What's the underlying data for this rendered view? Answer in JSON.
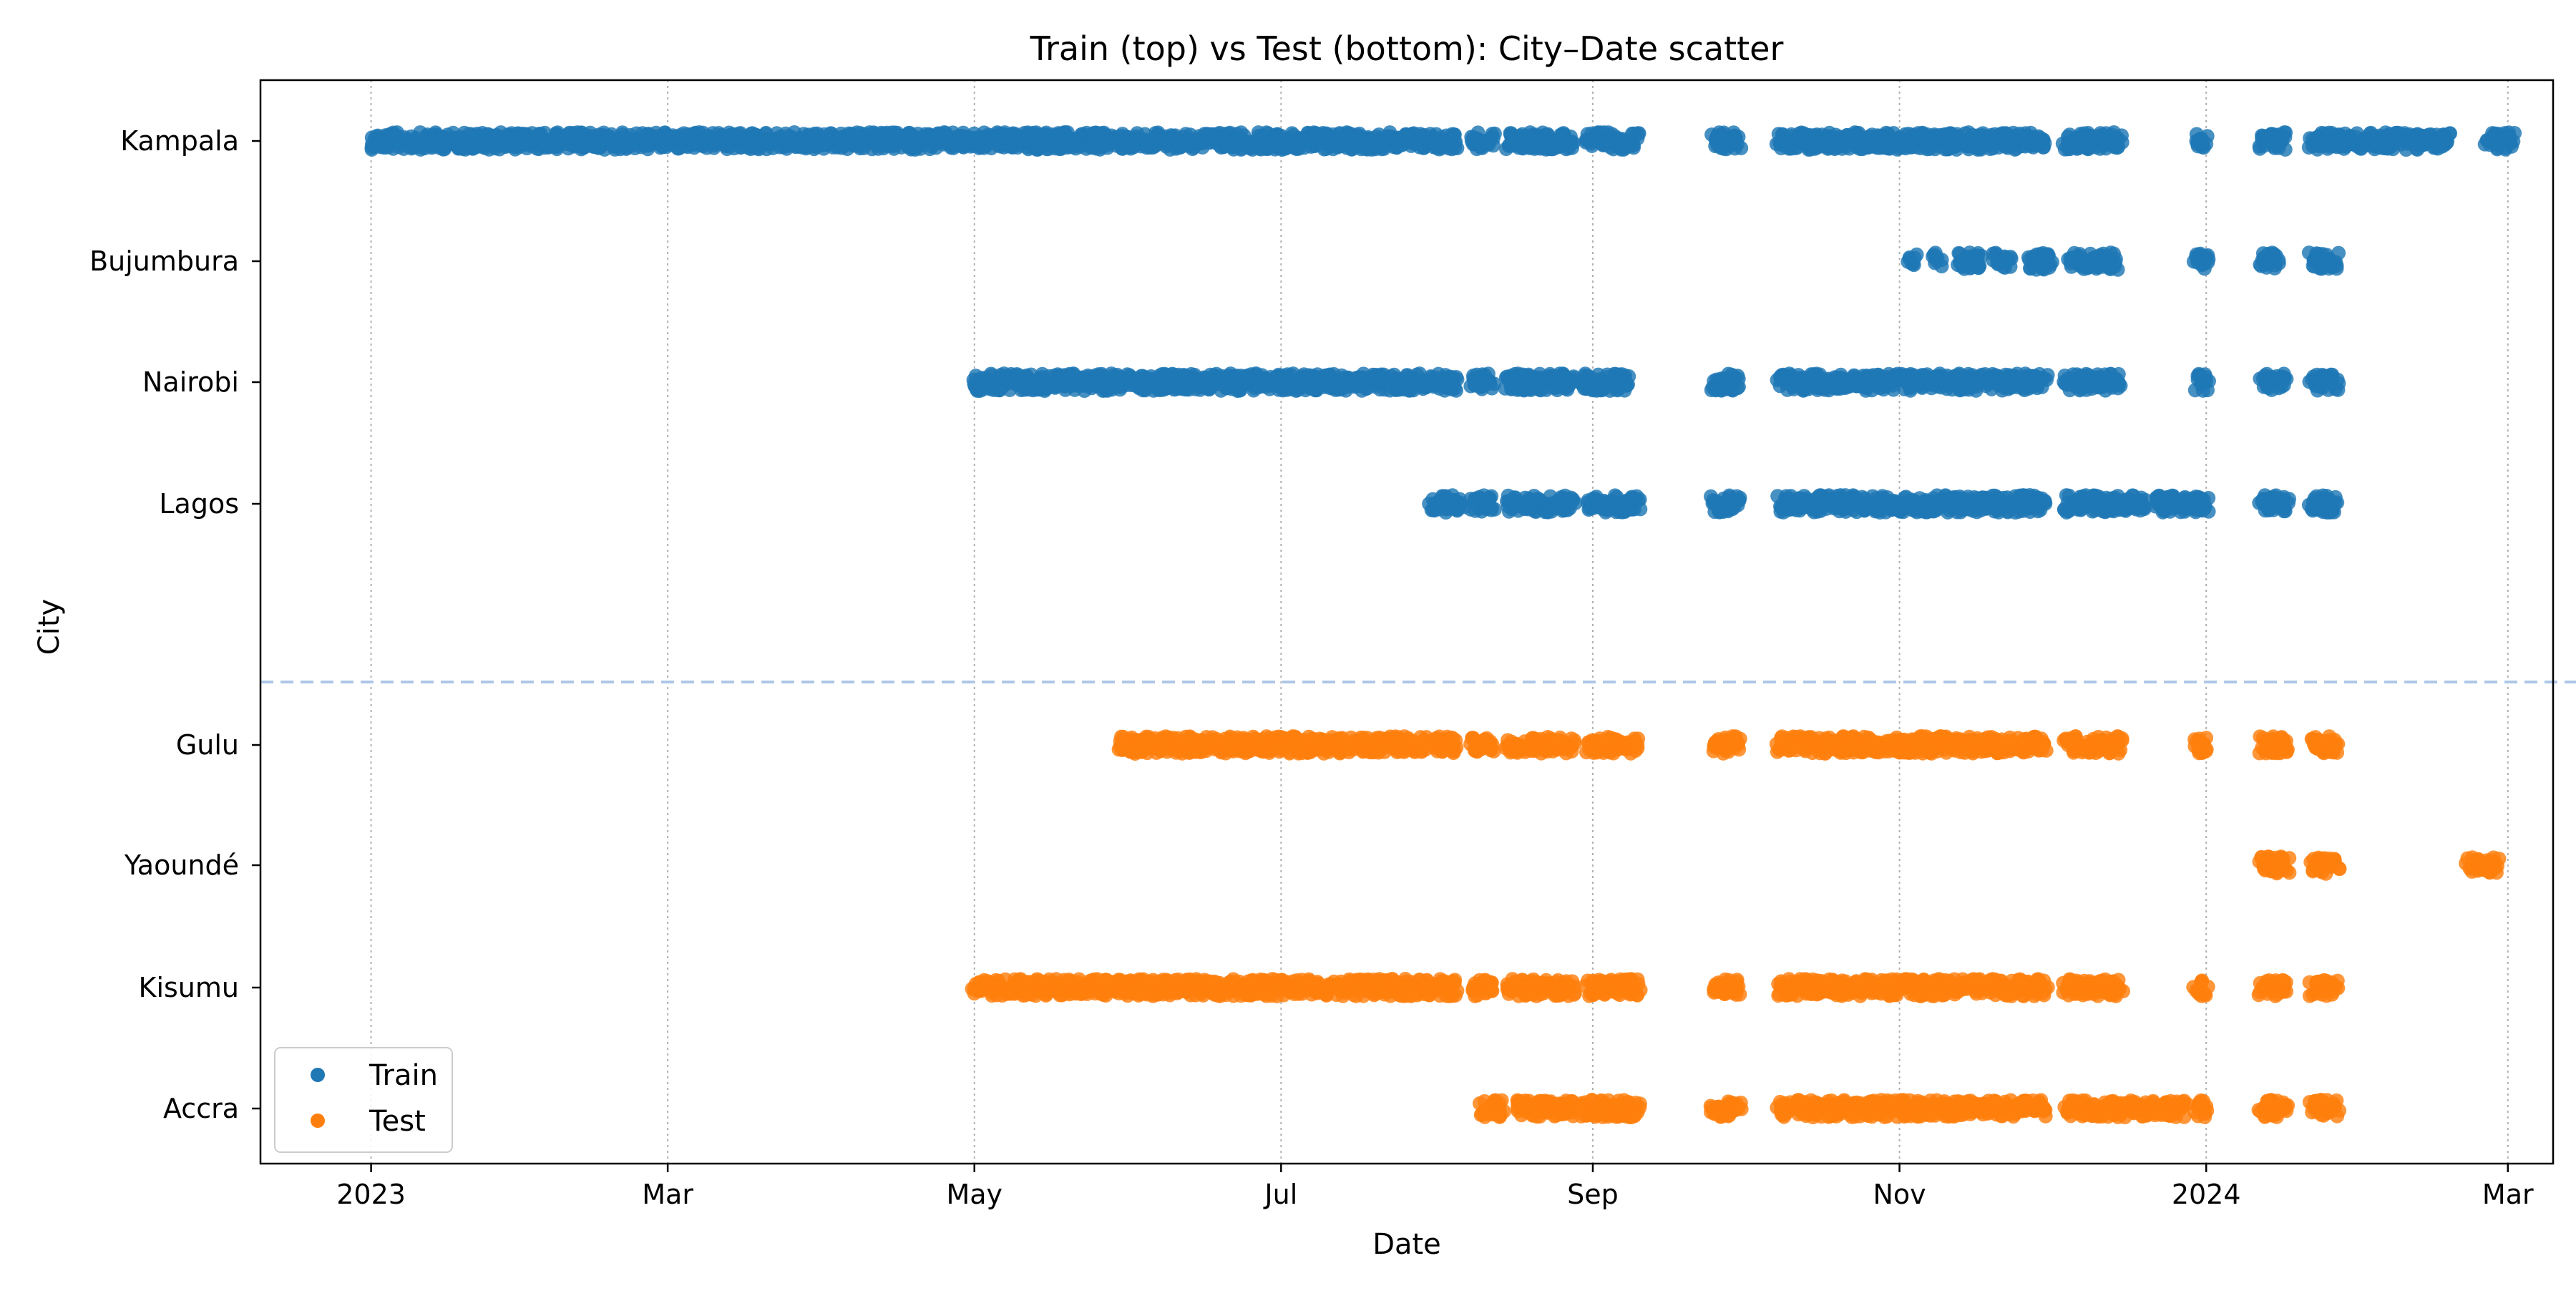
{
  "chart_data": {
    "type": "scatter",
    "title": "Train (top) vs Test (bottom): City–Date scatter",
    "xlabel": "Date",
    "ylabel": "City",
    "xlim": [
      "2022-12-10",
      "2024-03-10"
    ],
    "x_ticks": [
      {
        "date": "2023-01-01",
        "label": "2023"
      },
      {
        "date": "2023-03-01",
        "label": "Mar"
      },
      {
        "date": "2023-05-01",
        "label": "May"
      },
      {
        "date": "2023-07-01",
        "label": "Jul"
      },
      {
        "date": "2023-09-01",
        "label": "Sep"
      },
      {
        "date": "2023-11-01",
        "label": "Nov"
      },
      {
        "date": "2024-01-01",
        "label": "2024"
      },
      {
        "date": "2024-03-01",
        "label": "Mar"
      }
    ],
    "categories": [
      "Kampala",
      "Bujumbura",
      "Nairobi",
      "Lagos",
      "Gulu",
      "Yaoundé",
      "Kisumu",
      "Accra"
    ],
    "grid": "x dotted",
    "legend_position": "bottom-left",
    "colors": {
      "train": "#1f77b4",
      "test": "#ff7f0e",
      "divider": "#aec7e8"
    },
    "series": [
      {
        "name": "Train",
        "color": "#1f77b4",
        "points": [
          {
            "city": "Kampala",
            "ranges": [
              [
                "2023-01-01",
                "2023-08-05"
              ],
              [
                "2023-08-08",
                "2023-08-12"
              ],
              [
                "2023-08-15",
                "2023-08-28"
              ],
              [
                "2023-08-31",
                "2023-09-10"
              ],
              [
                "2023-09-25",
                "2023-09-30"
              ],
              [
                "2023-10-08",
                "2023-11-30"
              ],
              [
                "2023-12-04",
                "2023-12-15"
              ],
              [
                "2023-12-30",
                "2024-01-01"
              ],
              [
                "2024-01-12",
                "2024-01-17"
              ],
              [
                "2024-01-22",
                "2024-02-18"
              ],
              [
                "2024-02-26",
                "2024-03-02"
              ]
            ]
          },
          {
            "city": "Bujumbura",
            "ranges": [
              [
                "2023-11-03",
                "2023-11-04"
              ],
              [
                "2023-11-08",
                "2023-11-09"
              ],
              [
                "2023-11-13",
                "2023-11-17"
              ],
              [
                "2023-11-20",
                "2023-11-23"
              ],
              [
                "2023-11-27",
                "2023-12-01"
              ],
              [
                "2023-12-05",
                "2023-12-14"
              ],
              [
                "2023-12-30",
                "2024-01-01"
              ],
              [
                "2024-01-12",
                "2024-01-15"
              ],
              [
                "2024-01-22",
                "2024-01-27"
              ]
            ]
          },
          {
            "city": "Nairobi",
            "ranges": [
              [
                "2023-05-01",
                "2023-08-05"
              ],
              [
                "2023-08-08",
                "2023-08-12"
              ],
              [
                "2023-08-15",
                "2023-08-28"
              ],
              [
                "2023-08-30",
                "2023-09-08"
              ],
              [
                "2023-09-25",
                "2023-09-30"
              ],
              [
                "2023-10-08",
                "2023-11-30"
              ],
              [
                "2023-12-04",
                "2023-12-15"
              ],
              [
                "2023-12-30",
                "2024-01-01"
              ],
              [
                "2024-01-12",
                "2024-01-17"
              ],
              [
                "2024-01-22",
                "2024-01-27"
              ]
            ]
          },
          {
            "city": "Lagos",
            "ranges": [
              [
                "2023-07-31",
                "2023-08-06"
              ],
              [
                "2023-08-08",
                "2023-08-12"
              ],
              [
                "2023-08-15",
                "2023-08-28"
              ],
              [
                "2023-08-31",
                "2023-09-10"
              ],
              [
                "2023-09-25",
                "2023-09-30"
              ],
              [
                "2023-10-08",
                "2023-11-30"
              ],
              [
                "2023-12-04",
                "2023-12-20"
              ],
              [
                "2023-12-22",
                "2024-01-01"
              ],
              [
                "2024-01-12",
                "2024-01-17"
              ],
              [
                "2024-01-22",
                "2024-01-27"
              ]
            ]
          }
        ]
      },
      {
        "name": "Test",
        "color": "#ff7f0e",
        "points": [
          {
            "city": "Gulu",
            "ranges": [
              [
                "2023-05-30",
                "2023-08-05"
              ],
              [
                "2023-08-08",
                "2023-08-12"
              ],
              [
                "2023-08-15",
                "2023-08-28"
              ],
              [
                "2023-08-31",
                "2023-09-10"
              ],
              [
                "2023-09-25",
                "2023-09-30"
              ],
              [
                "2023-10-08",
                "2023-11-30"
              ],
              [
                "2023-12-04",
                "2023-12-15"
              ],
              [
                "2023-12-30",
                "2024-01-01"
              ],
              [
                "2024-01-12",
                "2024-01-17"
              ],
              [
                "2024-01-22",
                "2024-01-27"
              ]
            ]
          },
          {
            "city": "Yaoundé",
            "ranges": [
              [
                "2024-01-12",
                "2024-01-17"
              ],
              [
                "2024-01-22",
                "2024-01-27"
              ],
              [
                "2024-02-22",
                "2024-02-28"
              ]
            ]
          },
          {
            "city": "Kisumu",
            "ranges": [
              [
                "2023-05-01",
                "2023-08-05"
              ],
              [
                "2023-08-08",
                "2023-08-12"
              ],
              [
                "2023-08-15",
                "2023-08-28"
              ],
              [
                "2023-08-31",
                "2023-09-10"
              ],
              [
                "2023-09-25",
                "2023-09-30"
              ],
              [
                "2023-10-08",
                "2023-11-30"
              ],
              [
                "2023-12-04",
                "2023-12-15"
              ],
              [
                "2023-12-30",
                "2024-01-01"
              ],
              [
                "2024-01-12",
                "2024-01-17"
              ],
              [
                "2024-01-22",
                "2024-01-27"
              ]
            ]
          },
          {
            "city": "Accra",
            "ranges": [
              [
                "2023-08-10",
                "2023-08-14"
              ],
              [
                "2023-08-17",
                "2023-08-28"
              ],
              [
                "2023-08-30",
                "2023-09-10"
              ],
              [
                "2023-09-25",
                "2023-09-30"
              ],
              [
                "2023-10-08",
                "2023-11-30"
              ],
              [
                "2023-12-04",
                "2023-12-28"
              ],
              [
                "2023-12-30",
                "2024-01-01"
              ],
              [
                "2024-01-12",
                "2024-01-17"
              ],
              [
                "2024-01-22",
                "2024-01-27"
              ]
            ]
          }
        ]
      }
    ]
  }
}
